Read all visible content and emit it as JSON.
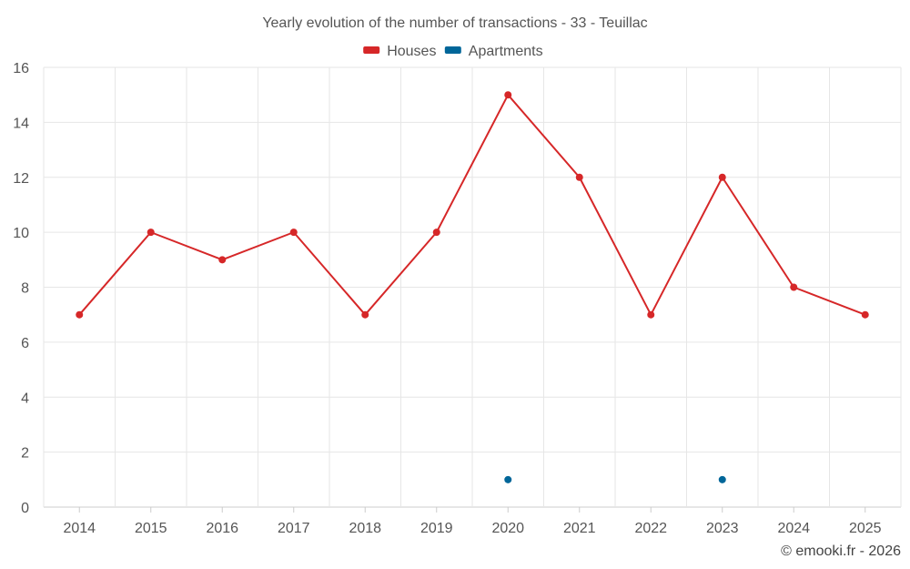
{
  "chart_data": {
    "type": "line",
    "title": "Yearly evolution of the number of transactions - 33 - Teuillac",
    "categories": [
      "2014",
      "2015",
      "2016",
      "2017",
      "2018",
      "2019",
      "2020",
      "2021",
      "2022",
      "2023",
      "2024",
      "2025"
    ],
    "series": [
      {
        "name": "Houses",
        "color": "#d62728",
        "values": [
          7,
          10,
          9,
          10,
          7,
          10,
          15,
          12,
          7,
          12,
          8,
          7
        ]
      },
      {
        "name": "Apartments",
        "color": "#006699",
        "values": [
          null,
          null,
          null,
          null,
          null,
          null,
          1,
          null,
          null,
          1,
          null,
          null
        ]
      }
    ],
    "yticks": [
      0,
      2,
      4,
      6,
      8,
      10,
      12,
      14,
      16
    ],
    "ylim": [
      0,
      16
    ],
    "grid": true,
    "legend_position": "top-center",
    "xlabel": "",
    "ylabel": ""
  },
  "credit": "© emooki.fr - 2026"
}
